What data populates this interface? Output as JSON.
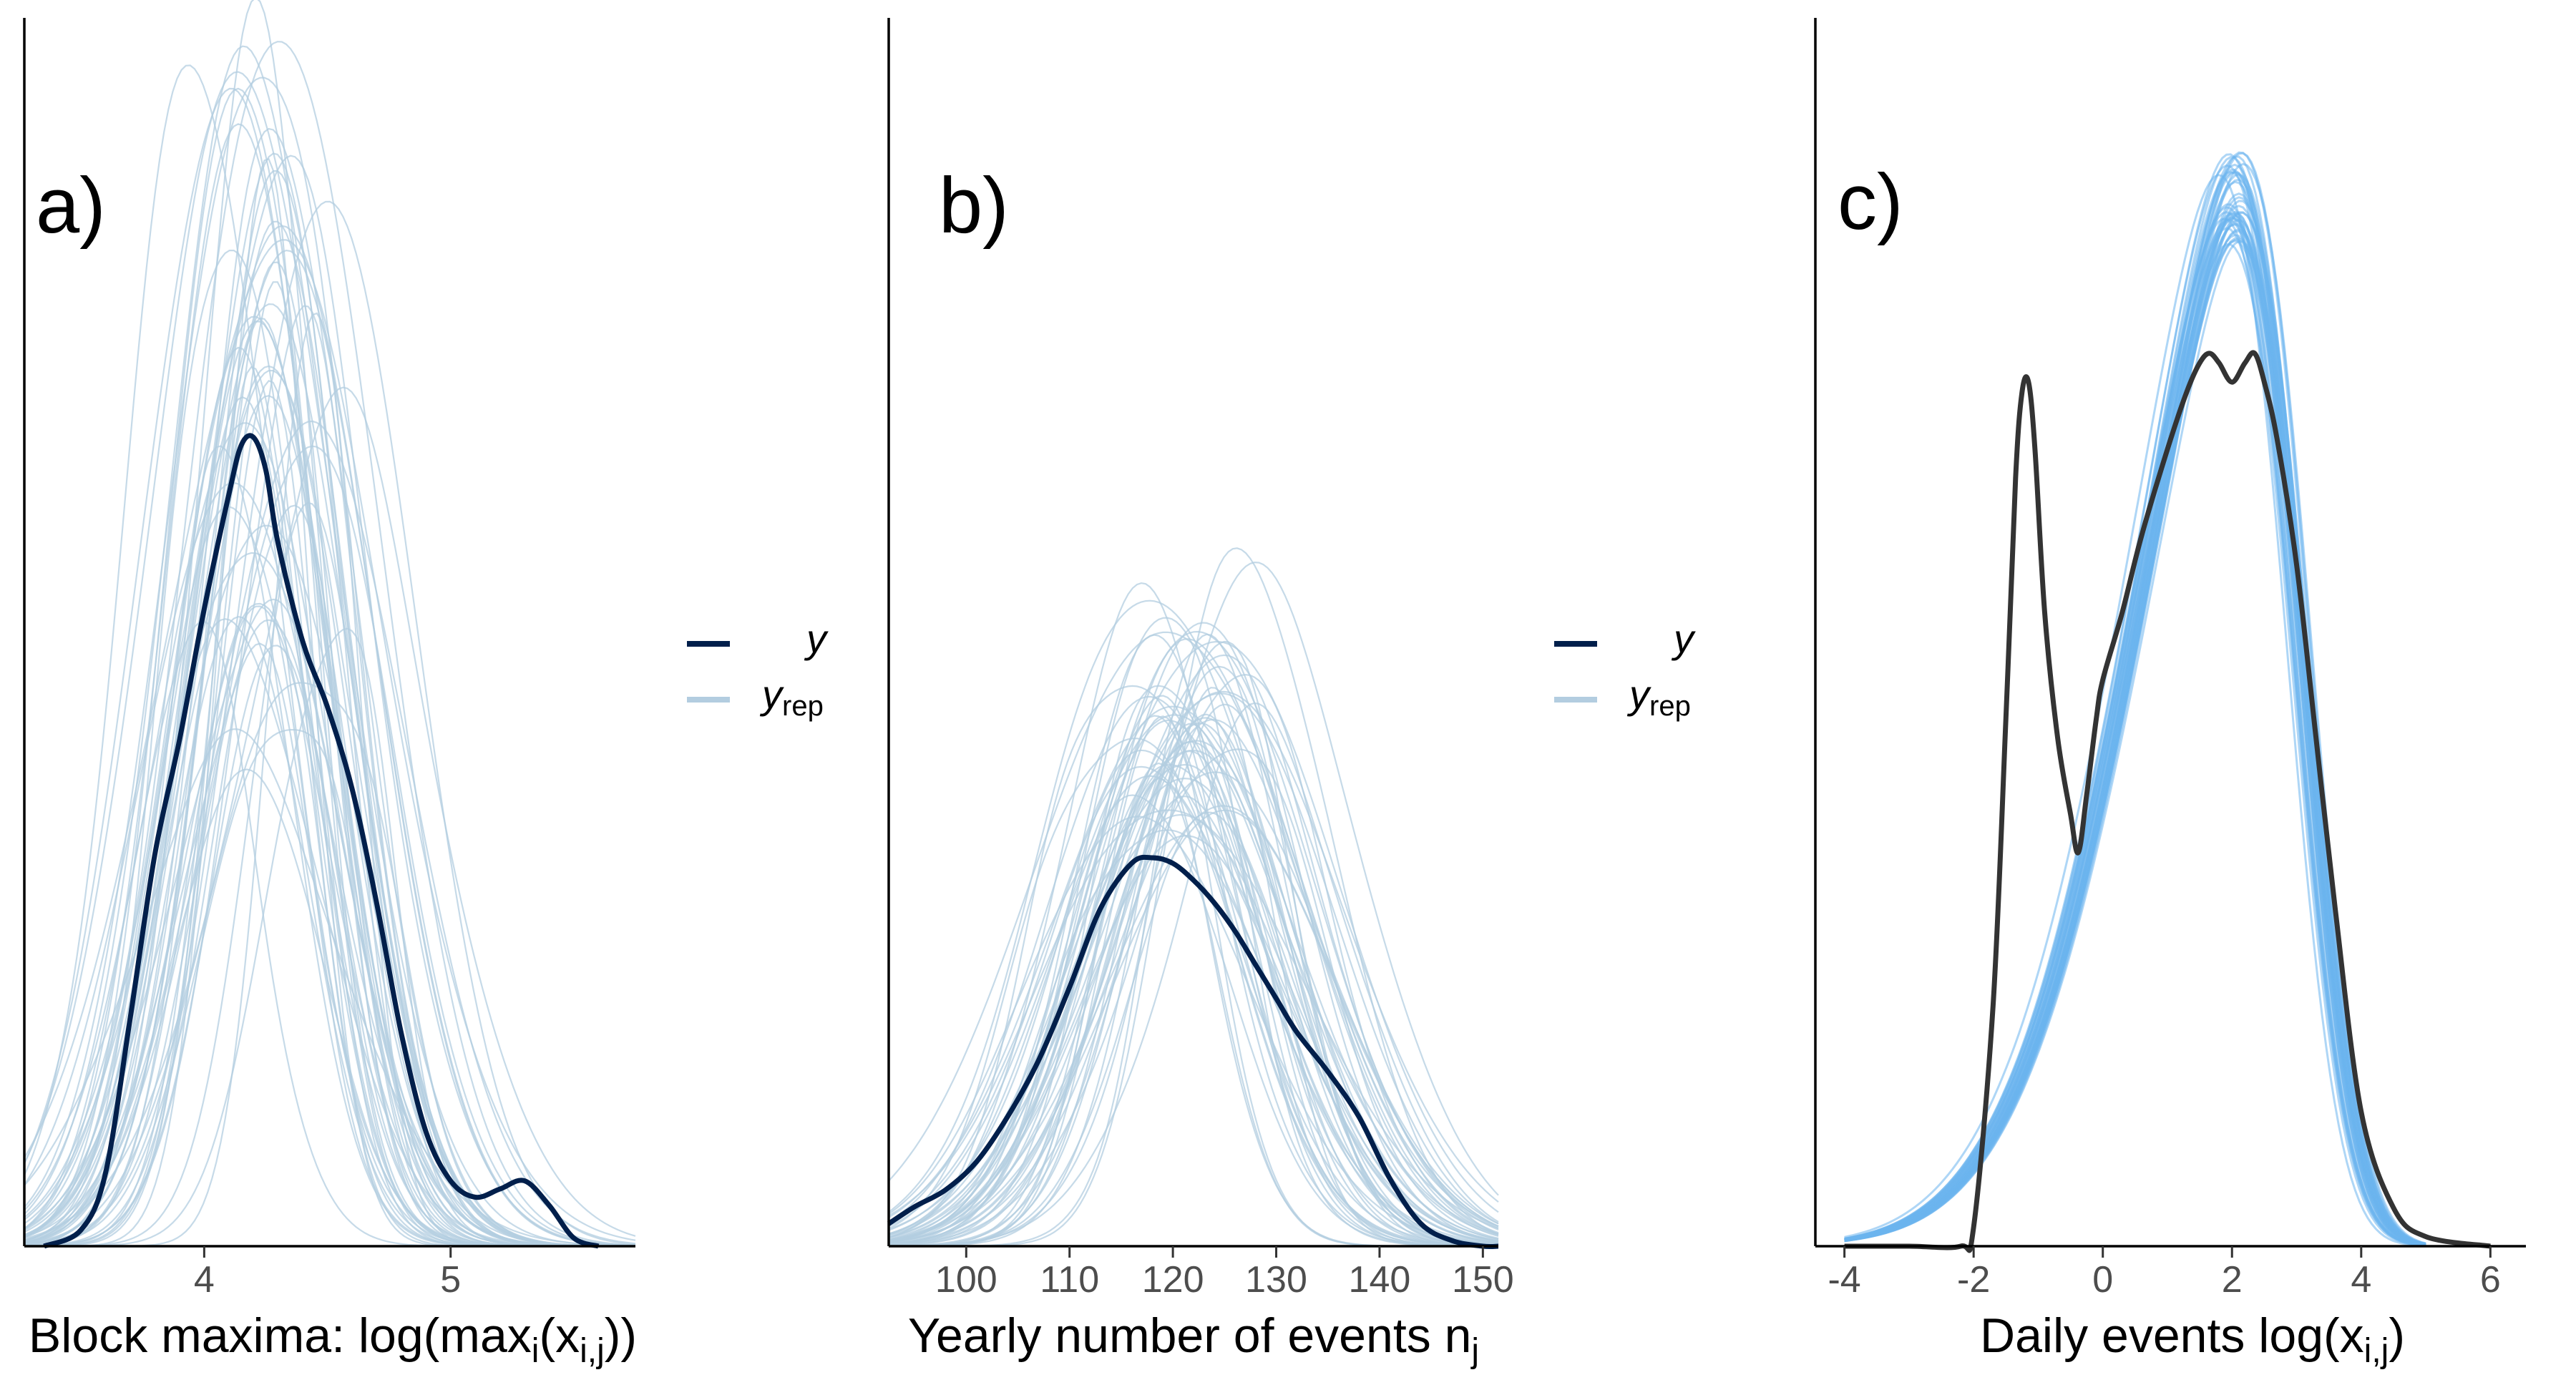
{
  "chart_data": [
    {
      "type": "line",
      "panel_label": "a)",
      "xlabel": "Block maxima: log(max",
      "xlabel_sub_i": "i",
      "xlabel_mid": "(x",
      "xlabel_sub_ij": "i,j",
      "xlabel_end": "))",
      "xlim": [
        3.27,
        5.75
      ],
      "ylim": [
        0,
        1.0
      ],
      "xticks": [
        "4",
        "5"
      ],
      "legend": {
        "y": "y",
        "yrep_main": "y",
        "yrep_sub": "rep",
        "placement": "right"
      },
      "colors": {
        "y": "#011f4b",
        "yrep": "#b3cde0"
      },
      "series": [
        {
          "name": "y",
          "peak": 4.2,
          "x": [
            3.35,
            3.5,
            3.6,
            3.7,
            3.8,
            3.9,
            4.0,
            4.1,
            4.15,
            4.2,
            4.25,
            4.3,
            4.4,
            4.5,
            4.6,
            4.7,
            4.8,
            4.9,
            5.0,
            5.1,
            5.2,
            5.3,
            5.4,
            5.5,
            5.6
          ],
          "y": [
            0.0,
            0.02,
            0.09,
            0.28,
            0.48,
            0.62,
            0.78,
            0.92,
            0.98,
            0.99,
            0.95,
            0.86,
            0.74,
            0.66,
            0.56,
            0.42,
            0.26,
            0.14,
            0.08,
            0.06,
            0.07,
            0.08,
            0.05,
            0.01,
            0.0
          ]
        }
      ],
      "yrep": {
        "count": 60,
        "seed": 11,
        "peak_mean": 4.25,
        "peak_spread": 0.12,
        "sd_mean": 0.3,
        "sd_spread": 0.06,
        "height_min": 0.55,
        "height_max": 1.45
      }
    },
    {
      "type": "line",
      "panel_label": "b)",
      "xlabel": "Yearly number of events n",
      "xlabel_sub": "j",
      "xlim": [
        92.5,
        151.5
      ],
      "ylim": [
        0,
        1.0
      ],
      "xticks": [
        "100",
        "110",
        "120",
        "130",
        "140",
        "150"
      ],
      "legend": {
        "y": "y",
        "yrep_main": "y",
        "yrep_sub": "rep",
        "placement": "right"
      },
      "colors": {
        "y": "#011f4b",
        "yrep": "#b3cde0"
      },
      "series": [
        {
          "name": "y",
          "peak": 118,
          "x": [
            92.5,
            95,
            98,
            101,
            104,
            107,
            110,
            113,
            116,
            118,
            120,
            122,
            124,
            126,
            128,
            130,
            132,
            135,
            138,
            141,
            144,
            147,
            150,
            151.5
          ],
          "y": [
            0.04,
            0.07,
            0.1,
            0.15,
            0.23,
            0.33,
            0.46,
            0.6,
            0.68,
            0.69,
            0.68,
            0.65,
            0.61,
            0.56,
            0.5,
            0.44,
            0.38,
            0.31,
            0.23,
            0.12,
            0.04,
            0.01,
            0.0,
            0.0
          ]
        }
      ],
      "yrep": {
        "count": 60,
        "seed": 23,
        "peak_mean": 121,
        "peak_spread": 3.0,
        "sd_mean": 9.5,
        "sd_spread": 1.8,
        "height_min": 0.72,
        "height_max": 1.12
      }
    },
    {
      "type": "line",
      "panel_label": "c)",
      "xlabel": "Daily events log(x",
      "xlabel_sub": "i,j",
      "xlabel_end": ")",
      "xlim": [
        -4.45,
        6.55
      ],
      "ylim": [
        0,
        1.0
      ],
      "xticks": [
        "-4",
        "-2",
        "0",
        "2",
        "4",
        "6"
      ],
      "colors": {
        "y": "#333333",
        "yrep": "#6cb4ee"
      },
      "series": [
        {
          "name": "y",
          "x": [
            -4,
            -3,
            -2.2,
            -2.0,
            -1.7,
            -1.5,
            -1.35,
            -1.25,
            -1.15,
            -1.05,
            -0.9,
            -0.7,
            -0.5,
            -0.38,
            -0.25,
            -0.1,
            0,
            0.3,
            0.6,
            1,
            1.3,
            1.5,
            1.65,
            1.8,
            2.0,
            2.2,
            2.35,
            2.5,
            2.7,
            3.0,
            3.3,
            3.6,
            4.0,
            4.5,
            5.0,
            6.0
          ],
          "y": [
            0.0,
            0.0,
            0.0,
            0.02,
            0.25,
            0.55,
            0.8,
            0.89,
            0.9,
            0.83,
            0.66,
            0.53,
            0.45,
            0.41,
            0.47,
            0.55,
            0.59,
            0.66,
            0.74,
            0.83,
            0.89,
            0.92,
            0.93,
            0.92,
            0.9,
            0.92,
            0.93,
            0.9,
            0.84,
            0.71,
            0.53,
            0.35,
            0.14,
            0.04,
            0.01,
            0.0
          ]
        }
      ],
      "yrep": {
        "count": 45,
        "seed": 37,
        "mean": 1.9,
        "sd": 1.6,
        "skew": 1.15,
        "height_min": 1.04,
        "height_max": 1.14,
        "peak_spread": 0.1
      }
    }
  ]
}
